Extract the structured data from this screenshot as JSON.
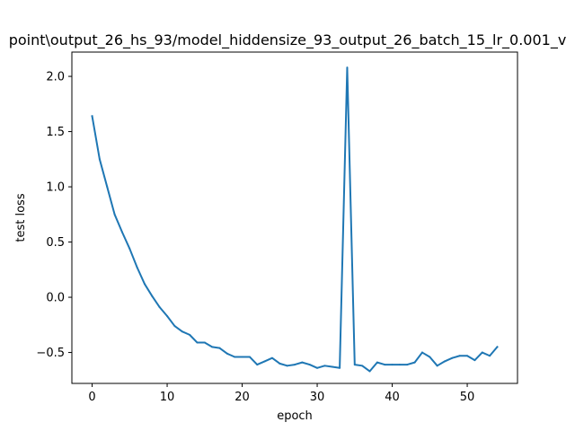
{
  "chart_data": {
    "type": "line",
    "title": "point\\output_26_hs_93/model_hiddensize_93_output_26_batch_15_lr_0.001_v",
    "xlabel": "epoch",
    "ylabel": "test loss",
    "xlim": [
      -2.7,
      56.7
    ],
    "ylim": [
      -0.78,
      2.22
    ],
    "xticks": [
      0,
      10,
      20,
      30,
      40,
      50
    ],
    "yticks": [
      -0.5,
      0.0,
      0.5,
      1.0,
      1.5,
      2.0
    ],
    "xtick_labels": [
      "0",
      "10",
      "20",
      "30",
      "40",
      "50"
    ],
    "ytick_labels": [
      "−0.5",
      "0.0",
      "0.5",
      "1.0",
      "1.5",
      "2.0"
    ],
    "grid": false,
    "series": [
      {
        "color": "#1f77b4",
        "x": [
          0,
          1,
          2,
          3,
          4,
          5,
          6,
          7,
          8,
          9,
          10,
          11,
          12,
          13,
          14,
          15,
          16,
          17,
          18,
          19,
          20,
          21,
          22,
          23,
          24,
          25,
          26,
          27,
          28,
          29,
          30,
          31,
          32,
          33,
          34,
          35,
          36,
          37,
          38,
          39,
          40,
          41,
          42,
          43,
          44,
          45,
          46,
          47,
          48,
          49,
          50,
          51,
          52,
          53,
          54
        ],
        "y": [
          1.64,
          1.25,
          1.0,
          0.75,
          0.59,
          0.44,
          0.27,
          0.12,
          0.01,
          -0.09,
          -0.17,
          -0.26,
          -0.31,
          -0.34,
          -0.41,
          -0.41,
          -0.45,
          -0.46,
          -0.51,
          -0.54,
          -0.54,
          -0.54,
          -0.61,
          -0.58,
          -0.55,
          -0.6,
          -0.62,
          -0.61,
          -0.59,
          -0.61,
          -0.64,
          -0.62,
          -0.63,
          -0.64,
          2.08,
          -0.61,
          -0.62,
          -0.67,
          -0.59,
          -0.61,
          -0.61,
          -0.61,
          -0.61,
          -0.59,
          -0.5,
          -0.54,
          -0.62,
          -0.58,
          -0.55,
          -0.53,
          -0.53,
          -0.57,
          -0.5,
          -0.53,
          -0.45
        ]
      }
    ]
  }
}
